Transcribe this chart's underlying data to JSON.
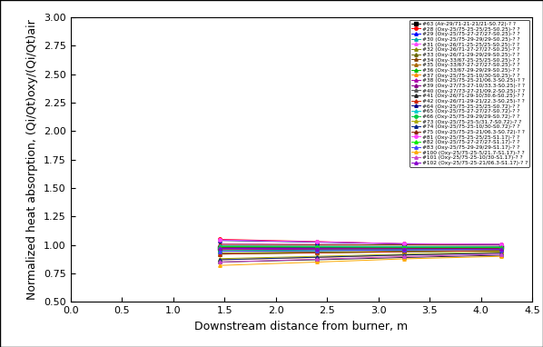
{
  "xlabel": "Downstream distance from burner, m",
  "ylabel": "Normalized heat absorption, (Qi/Qt)oxy/(Qi/Qt)air",
  "xlim": [
    0.0,
    4.5
  ],
  "ylim": [
    0.5,
    3.0
  ],
  "xticks": [
    0.0,
    0.5,
    1.0,
    1.5,
    2.0,
    2.5,
    3.0,
    3.5,
    4.0,
    4.5
  ],
  "yticks": [
    0.5,
    0.75,
    1.0,
    1.25,
    1.5,
    1.75,
    2.0,
    2.25,
    2.5,
    2.75,
    3.0
  ],
  "x_positions": [
    1.45,
    2.4,
    3.25,
    4.2
  ],
  "series": [
    {
      "label": "#63 (Air-29/71-21-21/21-S0.72)-? ?",
      "color": "#000000",
      "marker": "s",
      "values": [
        0.972,
        0.975,
        0.978,
        0.98
      ]
    },
    {
      "label": "#28 (Oxy-25/75-25-25/25-S0.25)-? ?",
      "color": "#ff0000",
      "marker": "o",
      "values": [
        1.05,
        1.03,
        1.01,
        1.005
      ]
    },
    {
      "label": "#29 (Oxy-25/75-27-27/27-S0.25)-? ?",
      "color": "#0000ff",
      "marker": "^",
      "values": [
        0.98,
        0.978,
        0.977,
        0.976
      ]
    },
    {
      "label": "#30 (Oxy-25/75-29-29/29-S0.25)-? ?",
      "color": "#00aaaa",
      "marker": "^",
      "values": [
        0.945,
        0.95,
        0.958,
        0.962
      ]
    },
    {
      "label": "#31 (Oxy-26/71-25-25/25-S0.25)-? ?",
      "color": "#ff44ff",
      "marker": "^",
      "values": [
        1.01,
        1.005,
        1.002,
        1.0
      ]
    },
    {
      "label": "#32 (Oxy-26/71-27-27/27-S0.25)-? ?",
      "color": "#888800",
      "marker": "^",
      "values": [
        0.965,
        0.968,
        0.97,
        0.972
      ]
    },
    {
      "label": "#33 (Oxy-26/71-29-29/29-S0.25)-? ?",
      "color": "#666600",
      "marker": "^",
      "values": [
        0.93,
        0.938,
        0.945,
        0.95
      ]
    },
    {
      "label": "#34 (Oxy-33/67-25-25/25-S0.25)-? ?",
      "color": "#884400",
      "marker": "^",
      "values": [
        1.005,
        1.003,
        1.001,
        1.0
      ]
    },
    {
      "label": "#35 (Oxy-33/67-27-27/27-S0.25)-? ?",
      "color": "#aa6600",
      "marker": "^",
      "values": [
        0.96,
        0.963,
        0.967,
        0.97
      ]
    },
    {
      "label": "#36 (Oxy-33/67-29-29/29-S0.25)-? ?",
      "color": "#00bb00",
      "marker": "^",
      "values": [
        0.92,
        0.932,
        0.94,
        0.948
      ]
    },
    {
      "label": "#37 (Oxy-25/75-25-10/30-S0.25)-? ?",
      "color": "#ff8800",
      "marker": "^",
      "values": [
        0.87,
        0.89,
        0.91,
        0.93
      ]
    },
    {
      "label": "#38 (Oxy-25/75-25-21/06.3-S0.25)-? ?",
      "color": "#aa00aa",
      "marker": "^",
      "values": [
        0.96,
        0.963,
        0.967,
        0.97
      ]
    },
    {
      "label": "#39 (Oxy-27/73-27-10/33.3-S0.25)-? ?",
      "color": "#880088",
      "marker": "^",
      "values": [
        0.985,
        0.983,
        0.981,
        0.98
      ]
    },
    {
      "label": "#40 (Oxy-27/73-27-21/09.2-S0.25)-? ?",
      "color": "#555555",
      "marker": "^",
      "values": [
        0.992,
        0.99,
        0.988,
        0.987
      ]
    },
    {
      "label": "#41 (Oxy-26/71-29-10/30.6-S0.25)-? ?",
      "color": "#222222",
      "marker": "^",
      "values": [
        0.85,
        0.87,
        0.89,
        0.91
      ]
    },
    {
      "label": "#42 (Oxy-26/71-29-21/22.3-S0.25)-? ?",
      "color": "#cc2200",
      "marker": "^",
      "values": [
        0.92,
        0.93,
        0.94,
        0.95
      ]
    },
    {
      "label": "#64 (Oxy-25/75-25-25/25-S0.72)-? ?",
      "color": "#000088",
      "marker": "^",
      "values": [
        1.04,
        1.025,
        1.01,
        1.005
      ]
    },
    {
      "label": "#65 (Oxy-25/75-27-27/27-S0.72)-? ?",
      "color": "#00cccc",
      "marker": "^",
      "values": [
        0.99,
        0.986,
        0.983,
        0.981
      ]
    },
    {
      "label": "#66 (Oxy-25/75-29-29/29-S0.72)-? ?",
      "color": "#00cc44",
      "marker": "o",
      "values": [
        0.95,
        0.955,
        0.96,
        0.964
      ]
    },
    {
      "label": "#73 (Oxy-25/75-25-5/31.7-S0.72)-? ?",
      "color": "#aaaa00",
      "marker": "^",
      "values": [
        0.88,
        0.9,
        0.92,
        0.938
      ]
    },
    {
      "label": "#74 (Oxy-25/75-25-10/30-S0.72)-? ?",
      "color": "#002288",
      "marker": "^",
      "values": [
        0.87,
        0.892,
        0.912,
        0.928
      ]
    },
    {
      "label": "#75 (Oxy-25/75-25-21/06.3-S0.72)-? ?",
      "color": "#882200",
      "marker": "^",
      "values": [
        0.975,
        0.972,
        0.97,
        0.968
      ]
    },
    {
      "label": "#81 (Oxy-25/75-25-25/25-S1.17)-? ?",
      "color": "#ff44ff",
      "marker": "o",
      "values": [
        1.045,
        1.028,
        1.012,
        1.006
      ]
    },
    {
      "label": "#82 (Oxy-25/75-27-27/27-S1.17)-? ?",
      "color": "#00ee00",
      "marker": "^",
      "values": [
        0.985,
        0.982,
        0.98,
        0.979
      ]
    },
    {
      "label": "#83 (Oxy-25/75-29-29/29-S1.17)-? ?",
      "color": "#4444ff",
      "marker": "^",
      "values": [
        0.945,
        0.95,
        0.956,
        0.96
      ]
    },
    {
      "label": "#100 (Oxy-25/75-25-5/21.7-S1.17)-? ?",
      "color": "#ffaa00",
      "marker": "^",
      "values": [
        0.82,
        0.85,
        0.878,
        0.9
      ]
    },
    {
      "label": "#101 (Oxy-25/75-25-10/30-S1.17)-? ?",
      "color": "#cc44cc",
      "marker": "^",
      "values": [
        0.85,
        0.875,
        0.898,
        0.918
      ]
    },
    {
      "label": "#102 (Oxy-25/75-25-21/06.3-S1.17)-? ?",
      "color": "#8800cc",
      "marker": "^",
      "values": [
        0.97,
        0.968,
        0.966,
        0.964
      ]
    }
  ],
  "legend_fontsize": 4.2,
  "tick_fontsize": 8,
  "label_fontsize": 9,
  "outer_border": true
}
